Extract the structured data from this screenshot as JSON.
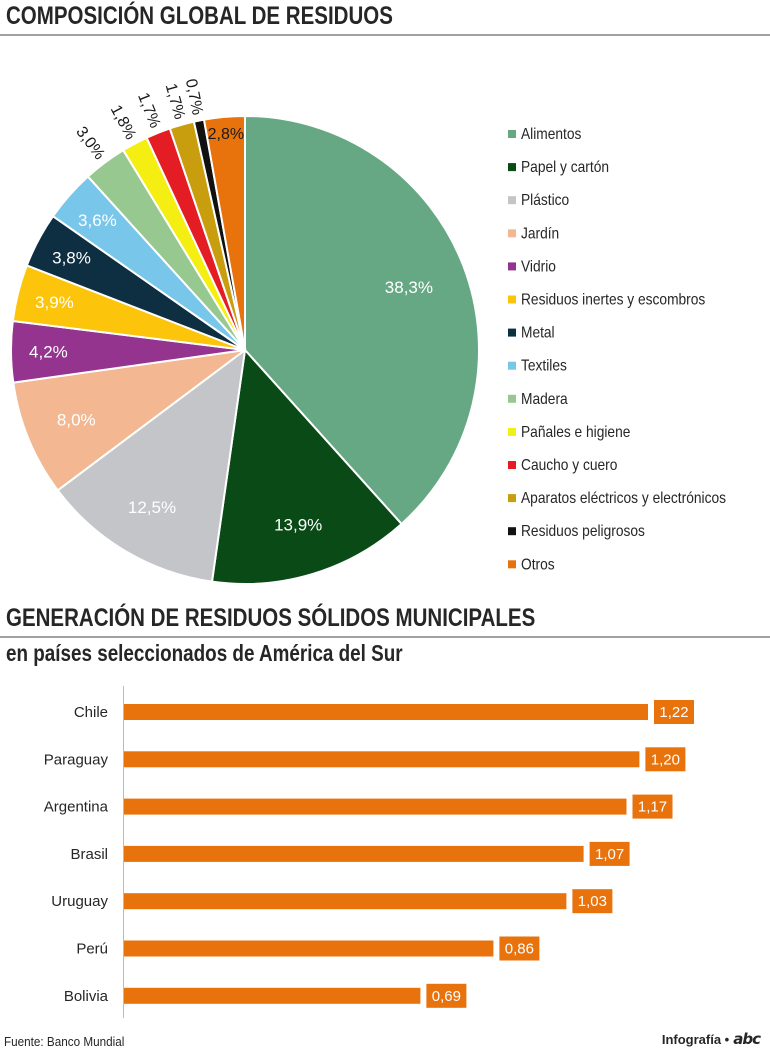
{
  "header": {
    "title1": "COMPOSICIÓN GLOBAL DE RESIDUOS",
    "title2": "GENERACIÓN DE RESIDUOS SÓLIDOS MUNICIPALES",
    "subtitle2": "en países seleccionados de América del Sur"
  },
  "chart_data": [
    {
      "type": "pie",
      "title": "COMPOSICIÓN GLOBAL DE RESIDUOS",
      "legend_position": "right",
      "slices": [
        {
          "label": "Alimentos",
          "value": 38.3,
          "text": "38,3%",
          "color": "#66a884"
        },
        {
          "label": "Papel y cartón",
          "value": 13.9,
          "text": "13,9%",
          "color": "#0a4a16"
        },
        {
          "label": "Plástico",
          "value": 12.5,
          "text": "12,5%",
          "color": "#c4c5c9"
        },
        {
          "label": "Jardín",
          "value": 8.0,
          "text": "8,0%",
          "color": "#f3b892"
        },
        {
          "label": "Vidrio",
          "value": 4.2,
          "text": "4,2%",
          "color": "#94348f"
        },
        {
          "label": "Residuos inertes y escombros",
          "value": 3.9,
          "text": "3,9%",
          "color": "#fcc50c"
        },
        {
          "label": "Metal",
          "value": 3.8,
          "text": "3,8%",
          "color": "#0e2f42"
        },
        {
          "label": "Textiles",
          "value": 3.6,
          "text": "3,6%",
          "color": "#78c7ea"
        },
        {
          "label": "Madera",
          "value": 3.0,
          "text": "3,0%",
          "color": "#96c890"
        },
        {
          "label": "Pañales e higiene",
          "value": 1.8,
          "text": "1,8%",
          "color": "#f5ee13"
        },
        {
          "label": "Caucho y cuero",
          "value": 1.7,
          "text": "1,7%",
          "color": "#e41d25"
        },
        {
          "label": "Aparatos eléctricos y electrónicos",
          "value": 1.7,
          "text": "1,7%",
          "color": "#c99e0e"
        },
        {
          "label": "Residuos peligrosos",
          "value": 0.7,
          "text": "0,7%",
          "color": "#111111"
        },
        {
          "label": "Otros",
          "value": 2.8,
          "text": "2,8%",
          "color": "#e8720c"
        }
      ]
    },
    {
      "type": "bar",
      "orientation": "horizontal",
      "title": "GENERACIÓN DE RESIDUOS SÓLIDOS MUNICIPALES",
      "subtitle": "en países seleccionados de América del Sur",
      "categories": [
        "Chile",
        "Paraguay",
        "Argentina",
        "Brasil",
        "Uruguay",
        "Perú",
        "Bolivia"
      ],
      "values": [
        1.22,
        1.2,
        1.17,
        1.07,
        1.03,
        0.86,
        0.69
      ],
      "value_labels": [
        "1,22",
        "1,20",
        "1,17",
        "1,07",
        "1,03",
        "0,86",
        "0,69"
      ],
      "color": "#e8720c"
    }
  ],
  "footer": {
    "source": "Fuente: Banco Mundial",
    "credit": "Infografía •",
    "logo": "abc"
  }
}
